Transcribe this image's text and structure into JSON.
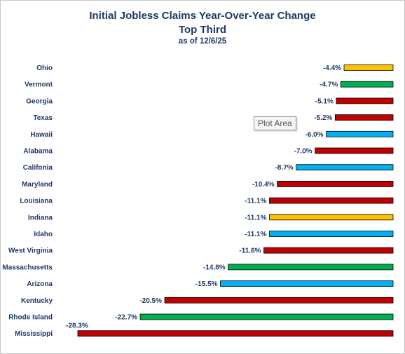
{
  "chart_data": {
    "type": "bar",
    "orientation": "horizontal",
    "title": "Initial Jobless Claims Year-Over-Year Change",
    "subtitle": "Top Third",
    "date_note": "as of 12/6/25",
    "categories": [
      "Ohio",
      "Vermont",
      "Georgia",
      "Texas",
      "Hawaii",
      "Alabama",
      "Califonia",
      "Maryland",
      "Louisiana",
      "Indiana",
      "Idaho",
      "West Virginia",
      "Massachusetts",
      "Arizona",
      "Kentucky",
      "Rhode Island",
      "Mississippi"
    ],
    "values": [
      -4.4,
      -4.7,
      -5.1,
      -5.2,
      -6.0,
      -7.0,
      -8.7,
      -10.4,
      -11.1,
      -11.1,
      -11.1,
      -11.6,
      -14.8,
      -15.5,
      -20.5,
      -22.7,
      -28.3
    ],
    "value_labels": [
      "-4.4%",
      "-4.7%",
      "-5.1%",
      "-5.2%",
      "-6.0%",
      "-7.0%",
      "-8.7%",
      "-10.4%",
      "-11.1%",
      "-11.1%",
      "-11.1%",
      "-11.6%",
      "-14.8%",
      "-15.5%",
      "-20.5%",
      "-22.7%",
      "-28.3%"
    ],
    "bar_colors": [
      "#ffc000",
      "#00b050",
      "#c00000",
      "#c00000",
      "#00b0f0",
      "#c00000",
      "#00b0f0",
      "#c00000",
      "#c00000",
      "#ffc000",
      "#00b0f0",
      "#c00000",
      "#00b050",
      "#00b0f0",
      "#c00000",
      "#00b050",
      "#c00000"
    ],
    "xlim": [
      -28.3,
      0
    ],
    "grid": false,
    "legend": "none"
  },
  "tooltip": "Plot Area"
}
